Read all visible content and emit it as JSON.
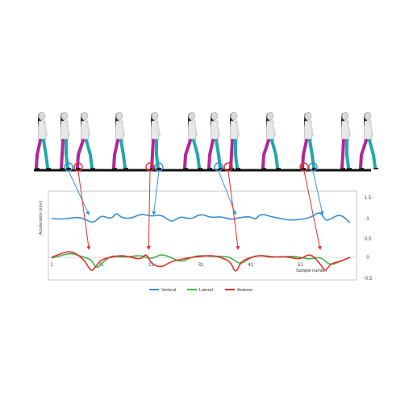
{
  "chart_data": {
    "type": "line",
    "ylabel": "Acceleration (m/s²)",
    "xlabel": "Sample number",
    "ylim": [
      -0.5,
      1.5
    ],
    "xlim": [
      1,
      61
    ],
    "x_ticks": [
      "1",
      "11",
      "21",
      "31",
      "41",
      "51"
    ],
    "y_ticks": [
      "1.5",
      "1",
      "0.5",
      "0",
      "-0.5"
    ],
    "legend_position": "bottom",
    "grid": false,
    "series": [
      {
        "name": "Vertical",
        "color": "#3b8fd6",
        "x": [
          1,
          3,
          5,
          7,
          9,
          10,
          11,
          13,
          14,
          15,
          17,
          19,
          21,
          23,
          25,
          26,
          27,
          29,
          31,
          33,
          35,
          37,
          38,
          39,
          41,
          42,
          43,
          45,
          47,
          49,
          51,
          53,
          55,
          56,
          57,
          59,
          61
        ],
        "values": [
          1.0,
          0.98,
          1.02,
          1.03,
          0.9,
          0.95,
          1.08,
          0.98,
          1.15,
          1.02,
          1.0,
          1.12,
          1.05,
          1.1,
          0.92,
          0.98,
          1.05,
          0.98,
          1.12,
          1.02,
          1.05,
          0.98,
          1.0,
          1.03,
          1.05,
          0.97,
          1.12,
          1.05,
          1.0,
          0.96,
          0.98,
          1.02,
          1.18,
          0.95,
          0.98,
          1.12,
          0.9
        ]
      },
      {
        "name": "Lateral",
        "color": "#3fb54a",
        "x": [
          1,
          3,
          5,
          7,
          9,
          10,
          11,
          13,
          15,
          17,
          19,
          21,
          23,
          25,
          27,
          29,
          31,
          33,
          35,
          37,
          39,
          41,
          43,
          45,
          47,
          49,
          51,
          53,
          55,
          57,
          59,
          61
        ],
        "values": [
          -0.02,
          0.05,
          0.1,
          0.02,
          -0.05,
          -0.28,
          -0.15,
          0.05,
          0.0,
          0.02,
          0.05,
          -0.05,
          0.08,
          0.0,
          -0.12,
          0.0,
          0.05,
          0.02,
          0.03,
          0.0,
          -0.18,
          0.0,
          0.05,
          0.02,
          0.0,
          0.03,
          0.0,
          -0.05,
          0.02,
          -0.2,
          -0.1,
          0.0
        ]
      },
      {
        "name": "Anterior",
        "color": "#e8302a",
        "x": [
          1,
          3,
          5,
          7,
          8,
          9,
          10,
          11,
          13,
          15,
          17,
          19,
          20,
          21,
          23,
          25,
          27,
          29,
          31,
          33,
          35,
          37,
          38,
          39,
          41,
          43,
          45,
          47,
          49,
          51,
          53,
          55,
          56,
          57,
          59,
          61
        ],
        "values": [
          0.0,
          0.1,
          0.15,
          0.0,
          -0.15,
          -0.35,
          -0.2,
          -0.05,
          0.0,
          0.05,
          0.0,
          -0.05,
          0.1,
          -0.15,
          -0.25,
          -0.1,
          -0.05,
          0.0,
          0.02,
          0.05,
          0.0,
          -0.1,
          -0.4,
          -0.1,
          0.0,
          0.05,
          0.0,
          0.02,
          0.0,
          -0.05,
          0.1,
          -0.15,
          -0.35,
          -0.15,
          -0.1,
          0.0
        ]
      }
    ]
  },
  "walkers": {
    "count": 12,
    "colors": {
      "skin": "#d9d9d9",
      "hair": "#1a1a1a",
      "shirt": "#e8e8e8",
      "leg_left": "#22a8a8",
      "leg_right": "#b0279b",
      "ground": "#111111"
    }
  },
  "event_markers": {
    "vertical_color": "#3b8fd6",
    "anterior_color": "#e8302a"
  }
}
